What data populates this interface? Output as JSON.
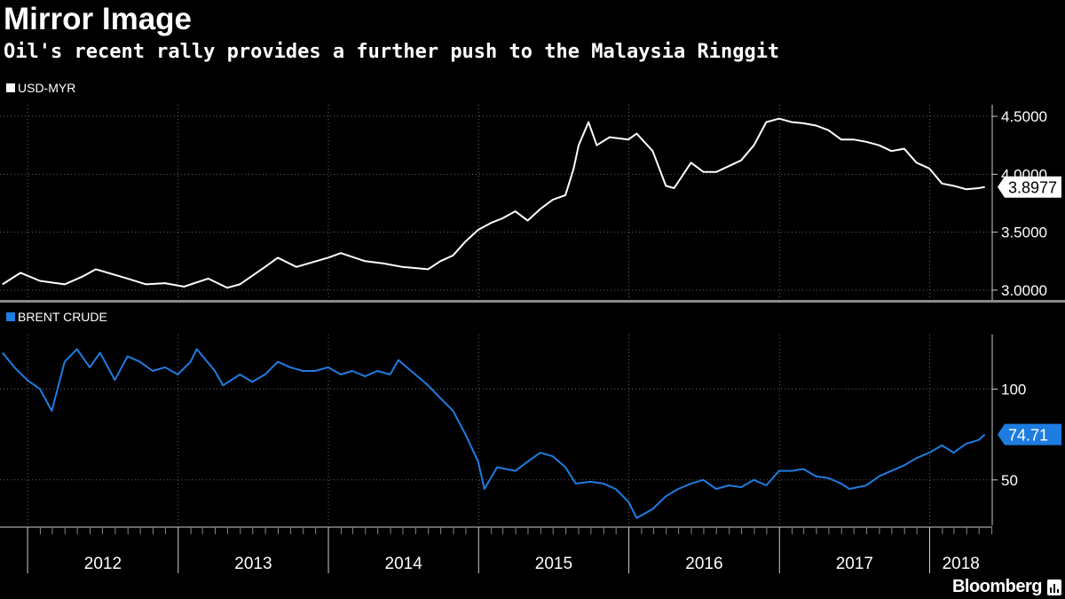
{
  "header": {
    "title": "Mirror Image",
    "subtitle": "Oil's recent rally provides a further push to the Malaysia Ringgit"
  },
  "brand": {
    "name": "Bloomberg",
    "icon": "bloomberg-terminal-icon"
  },
  "colors": {
    "background": "#000000",
    "usdmyr": "#ffffff",
    "brent": "#1f7ce0",
    "grid": "#666666"
  },
  "chart_data": [
    {
      "type": "line",
      "legend": "USD-MYR",
      "legend_position": "top-left",
      "last_value_label": "3.8977",
      "ylim": [
        2.9,
        4.6
      ],
      "y_ticks": [
        "3.0000",
        "3.5000",
        "4.0000",
        "4.5000"
      ],
      "y_tick_values": [
        3.0,
        3.5,
        4.0,
        4.5
      ],
      "grid": true,
      "color": "#ffffff",
      "series": [
        {
          "x": [
            "2011-11-01",
            "2011-12-15",
            "2012-01-31",
            "2012-03-31",
            "2012-05-15",
            "2012-06-15",
            "2012-08-31",
            "2012-10-15",
            "2012-11-30",
            "2013-01-15",
            "2013-03-15",
            "2013-04-30",
            "2013-05-31",
            "2013-07-31",
            "2013-08-31",
            "2013-10-15",
            "2013-12-31",
            "2014-01-31",
            "2014-03-31",
            "2014-05-15",
            "2014-06-30",
            "2014-08-31",
            "2014-09-30",
            "2014-10-31",
            "2014-11-30",
            "2014-12-31",
            "2015-01-31",
            "2015-02-28",
            "2015-03-31",
            "2015-04-30",
            "2015-05-31",
            "2015-06-30",
            "2015-07-31",
            "2015-08-20",
            "2015-09-01",
            "2015-09-25",
            "2015-10-15",
            "2015-11-15",
            "2015-12-31",
            "2016-01-20",
            "2016-02-28",
            "2016-03-31",
            "2016-04-20",
            "2016-05-31",
            "2016-06-30",
            "2016-08-01",
            "2016-09-30",
            "2016-10-31",
            "2016-11-30",
            "2016-12-31",
            "2017-01-31",
            "2017-02-28",
            "2017-03-31",
            "2017-04-30",
            "2017-05-31",
            "2017-06-30",
            "2017-07-31",
            "2017-08-31",
            "2017-09-30",
            "2017-10-31",
            "2017-11-30",
            "2017-12-31",
            "2018-01-31",
            "2018-02-28",
            "2018-03-31",
            "2018-04-30",
            "2018-05-15"
          ],
          "y": [
            3.05,
            3.15,
            3.08,
            3.05,
            3.12,
            3.18,
            3.1,
            3.05,
            3.06,
            3.03,
            3.1,
            3.02,
            3.05,
            3.2,
            3.28,
            3.2,
            3.28,
            3.32,
            3.25,
            3.23,
            3.2,
            3.18,
            3.25,
            3.3,
            3.42,
            3.52,
            3.58,
            3.62,
            3.68,
            3.6,
            3.7,
            3.78,
            3.82,
            4.05,
            4.25,
            4.45,
            4.25,
            4.32,
            4.3,
            4.35,
            4.2,
            3.9,
            3.88,
            4.1,
            4.02,
            4.02,
            4.12,
            4.25,
            4.45,
            4.48,
            4.45,
            4.44,
            4.42,
            4.38,
            4.3,
            4.3,
            4.28,
            4.25,
            4.2,
            4.22,
            4.1,
            4.05,
            3.92,
            3.9,
            3.87,
            3.88,
            3.89
          ]
        }
      ]
    },
    {
      "type": "line",
      "legend": "BRENT CRUDE",
      "legend_position": "top-left",
      "last_value_label": "74.71",
      "ylim": [
        25,
        130
      ],
      "y_ticks": [
        "50",
        "100"
      ],
      "y_tick_values": [
        50,
        100
      ],
      "grid": true,
      "color": "#1f7ce0",
      "series": [
        {
          "x": [
            "2011-11-01",
            "2011-11-30",
            "2011-12-31",
            "2012-01-31",
            "2012-02-29",
            "2012-03-31",
            "2012-04-30",
            "2012-05-31",
            "2012-06-25",
            "2012-07-31",
            "2012-08-31",
            "2012-09-30",
            "2012-10-31",
            "2012-11-30",
            "2012-12-31",
            "2013-01-31",
            "2013-02-15",
            "2013-03-31",
            "2013-04-20",
            "2013-05-31",
            "2013-06-30",
            "2013-07-31",
            "2013-08-31",
            "2013-09-30",
            "2013-10-31",
            "2013-11-30",
            "2013-12-31",
            "2014-01-31",
            "2014-02-28",
            "2014-03-31",
            "2014-04-30",
            "2014-05-31",
            "2014-06-20",
            "2014-07-31",
            "2014-08-31",
            "2014-09-30",
            "2014-10-31",
            "2014-11-30",
            "2014-12-31",
            "2015-01-15",
            "2015-02-15",
            "2015-03-31",
            "2015-04-30",
            "2015-05-31",
            "2015-06-30",
            "2015-07-31",
            "2015-08-25",
            "2015-09-30",
            "2015-10-31",
            "2015-11-30",
            "2015-12-31",
            "2016-01-20",
            "2016-02-28",
            "2016-03-31",
            "2016-04-30",
            "2016-05-31",
            "2016-06-30",
            "2016-07-31",
            "2016-08-31",
            "2016-09-30",
            "2016-10-31",
            "2016-11-30",
            "2016-12-31",
            "2017-01-31",
            "2017-02-28",
            "2017-03-31",
            "2017-04-30",
            "2017-05-31",
            "2017-06-20",
            "2017-07-31",
            "2017-08-31",
            "2017-09-30",
            "2017-10-31",
            "2017-11-30",
            "2017-12-31",
            "2018-01-31",
            "2018-02-28",
            "2018-03-31",
            "2018-04-30",
            "2018-05-15"
          ],
          "y": [
            120,
            112,
            105,
            100,
            88,
            115,
            122,
            112,
            120,
            105,
            118,
            115,
            110,
            112,
            108,
            115,
            122,
            110,
            102,
            108,
            104,
            108,
            115,
            112,
            110,
            110,
            112,
            108,
            110,
            107,
            110,
            108,
            116,
            108,
            102,
            95,
            88,
            75,
            60,
            45,
            57,
            55,
            60,
            65,
            63,
            57,
            48,
            49,
            48,
            45,
            38,
            29,
            34,
            41,
            45,
            48,
            50,
            45,
            47,
            46,
            50,
            47,
            55,
            55,
            56,
            52,
            51,
            48,
            45,
            47,
            52,
            55,
            58,
            62,
            65,
            69,
            65,
            70,
            72,
            75
          ]
        }
      ]
    }
  ],
  "x_axis": {
    "labels": [
      "2012",
      "2013",
      "2014",
      "2015",
      "2016",
      "2017",
      "2018"
    ]
  }
}
